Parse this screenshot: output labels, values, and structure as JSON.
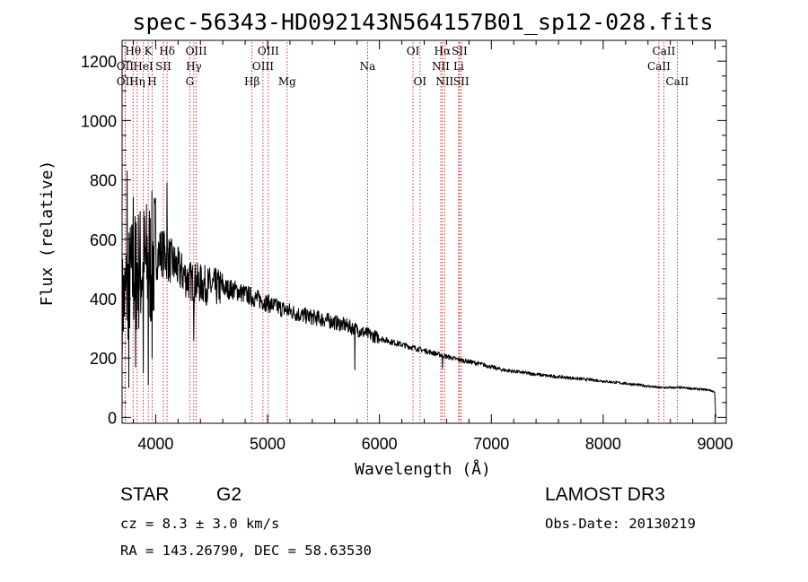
{
  "chart_data": {
    "type": "line",
    "title": "spec-56343-HD092143N564157B01_sp12-028.fits",
    "xlabel": "Wavelength (Å)",
    "ylabel": "Flux (relative)",
    "xlim": [
      3700,
      9100
    ],
    "ylim": [
      -20,
      1270
    ],
    "xticks": [
      4000,
      5000,
      6000,
      7000,
      8000,
      9000
    ],
    "yticks": [
      0,
      200,
      400,
      600,
      800,
      1000,
      1200
    ],
    "grid": false,
    "series": [
      {
        "name": "spectrum",
        "continuum": [
          [
            3700,
            380
          ],
          [
            3780,
            470
          ],
          [
            3850,
            500
          ],
          [
            3950,
            520
          ],
          [
            4050,
            560
          ],
          [
            4150,
            520
          ],
          [
            4300,
            460
          ],
          [
            4500,
            440
          ],
          [
            4700,
            430
          ],
          [
            4900,
            400
          ],
          [
            5100,
            370
          ],
          [
            5300,
            345
          ],
          [
            5500,
            330
          ],
          [
            5700,
            310
          ],
          [
            5900,
            280
          ],
          [
            6100,
            255
          ],
          [
            6300,
            235
          ],
          [
            6500,
            215
          ],
          [
            6700,
            195
          ],
          [
            6900,
            180
          ],
          [
            7100,
            160
          ],
          [
            7300,
            150
          ],
          [
            7500,
            140
          ],
          [
            7700,
            133
          ],
          [
            7900,
            126
          ],
          [
            8100,
            118
          ],
          [
            8300,
            110
          ],
          [
            8500,
            100
          ],
          [
            8700,
            100
          ],
          [
            8950,
            92
          ],
          [
            9000,
            85
          ]
        ],
        "features": [
          [
            3745,
            830
          ],
          [
            3760,
            100
          ],
          [
            3800,
            740
          ],
          [
            3820,
            170
          ],
          [
            3889,
            150
          ],
          [
            3934,
            110
          ],
          [
            3968,
            200
          ],
          [
            4101,
            790
          ],
          [
            4340,
            260
          ],
          [
            5780,
            160
          ],
          [
            6563,
            165
          ],
          [
            9005,
            0
          ]
        ]
      }
    ],
    "spectral_lines": [
      {
        "label": "Hθ",
        "wavelength": 3798,
        "row": 1
      },
      {
        "label": "K",
        "wavelength": 3934,
        "row": 1
      },
      {
        "label": "Hδ",
        "wavelength": 4102,
        "row": 1
      },
      {
        "label": "OII",
        "wavelength": 3727,
        "row": 2
      },
      {
        "label": "HeI",
        "wavelength": 3889,
        "row": 2
      },
      {
        "label": "SII",
        "wavelength": 4069,
        "row": 2
      },
      {
        "label": "OII",
        "wavelength": 3727,
        "row": 3
      },
      {
        "label": "Hη",
        "wavelength": 3835,
        "row": 3
      },
      {
        "label": "H",
        "wavelength": 3969,
        "row": 3
      },
      {
        "label": "OIII",
        "wavelength": 4363,
        "row": 1
      },
      {
        "label": "Hγ",
        "wavelength": 4341,
        "row": 2
      },
      {
        "label": "G",
        "wavelength": 4305,
        "row": 3
      },
      {
        "label": "OIII",
        "wavelength": 5007,
        "row": 1
      },
      {
        "label": "OIII",
        "wavelength": 4959,
        "row": 2
      },
      {
        "label": "Hβ",
        "wavelength": 4861,
        "row": 3
      },
      {
        "label": "Mg",
        "wavelength": 5175,
        "row": 3
      },
      {
        "label": "Na",
        "wavelength": 5894,
        "row": 2
      },
      {
        "label": "OI",
        "wavelength": 6300,
        "row": 1
      },
      {
        "label": "OI",
        "wavelength": 6363,
        "row": 3
      },
      {
        "label": "Hα",
        "wavelength": 6563,
        "row": 1
      },
      {
        "label": "SII",
        "wavelength": 6716,
        "row": 1
      },
      {
        "label": "NII",
        "wavelength": 6548,
        "row": 2
      },
      {
        "label": "Li",
        "wavelength": 6708,
        "row": 2
      },
      {
        "label": "NII",
        "wavelength": 6583,
        "row": 3
      },
      {
        "label": "SII",
        "wavelength": 6731,
        "row": 3
      },
      {
        "label": "CaII",
        "wavelength": 8542,
        "row": 1
      },
      {
        "label": "CaII",
        "wavelength": 8498,
        "row": 2
      },
      {
        "label": "CaII",
        "wavelength": 8662,
        "row": 3
      }
    ]
  },
  "info": {
    "class": "STAR",
    "subclass": "G2",
    "survey": "LAMOST DR3",
    "cz": "cz = 8.3 ± 3.0 km/s",
    "obs_date": "Obs-Date: 20130219",
    "coords": "RA = 143.26790, DEC =  58.63530"
  },
  "colors": {
    "spectrum": "#000000",
    "line_markers": "#cc0000",
    "axes": "#000000",
    "background": "#ffffff"
  }
}
